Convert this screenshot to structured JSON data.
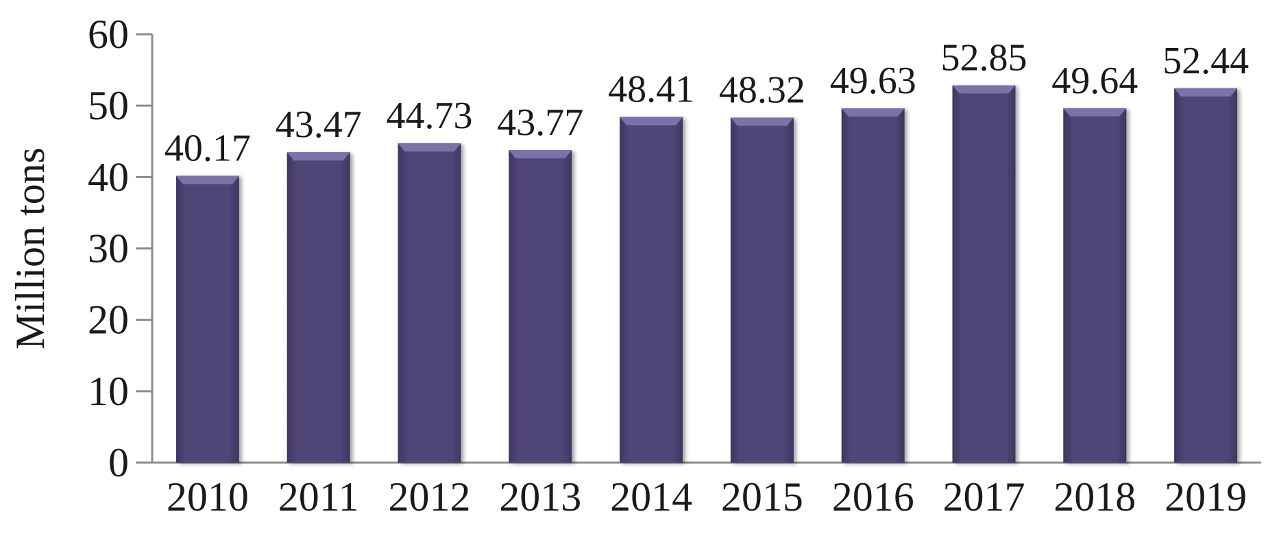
{
  "chart_data": {
    "type": "bar",
    "title": "",
    "xlabel": "",
    "ylabel": "Million tons",
    "ylim": [
      0,
      60
    ],
    "yticks": [
      0,
      10,
      20,
      30,
      40,
      50,
      60
    ],
    "categories": [
      "2010",
      "2011",
      "2012",
      "2013",
      "2014",
      "2015",
      "2016",
      "2017",
      "2018",
      "2019"
    ],
    "values": [
      40.17,
      43.47,
      44.73,
      43.77,
      48.41,
      48.32,
      49.63,
      52.85,
      49.64,
      52.44
    ],
    "data_labels": [
      "40.17",
      "43.47",
      "44.73",
      "43.77",
      "48.41",
      "48.32",
      "49.63",
      "52.85",
      "49.64",
      "52.44"
    ],
    "grid": false,
    "legend": "none",
    "colors": {
      "bar": "#4f4577",
      "bar_top": "#7a72a8",
      "axis": "#8c8c8c"
    }
  }
}
